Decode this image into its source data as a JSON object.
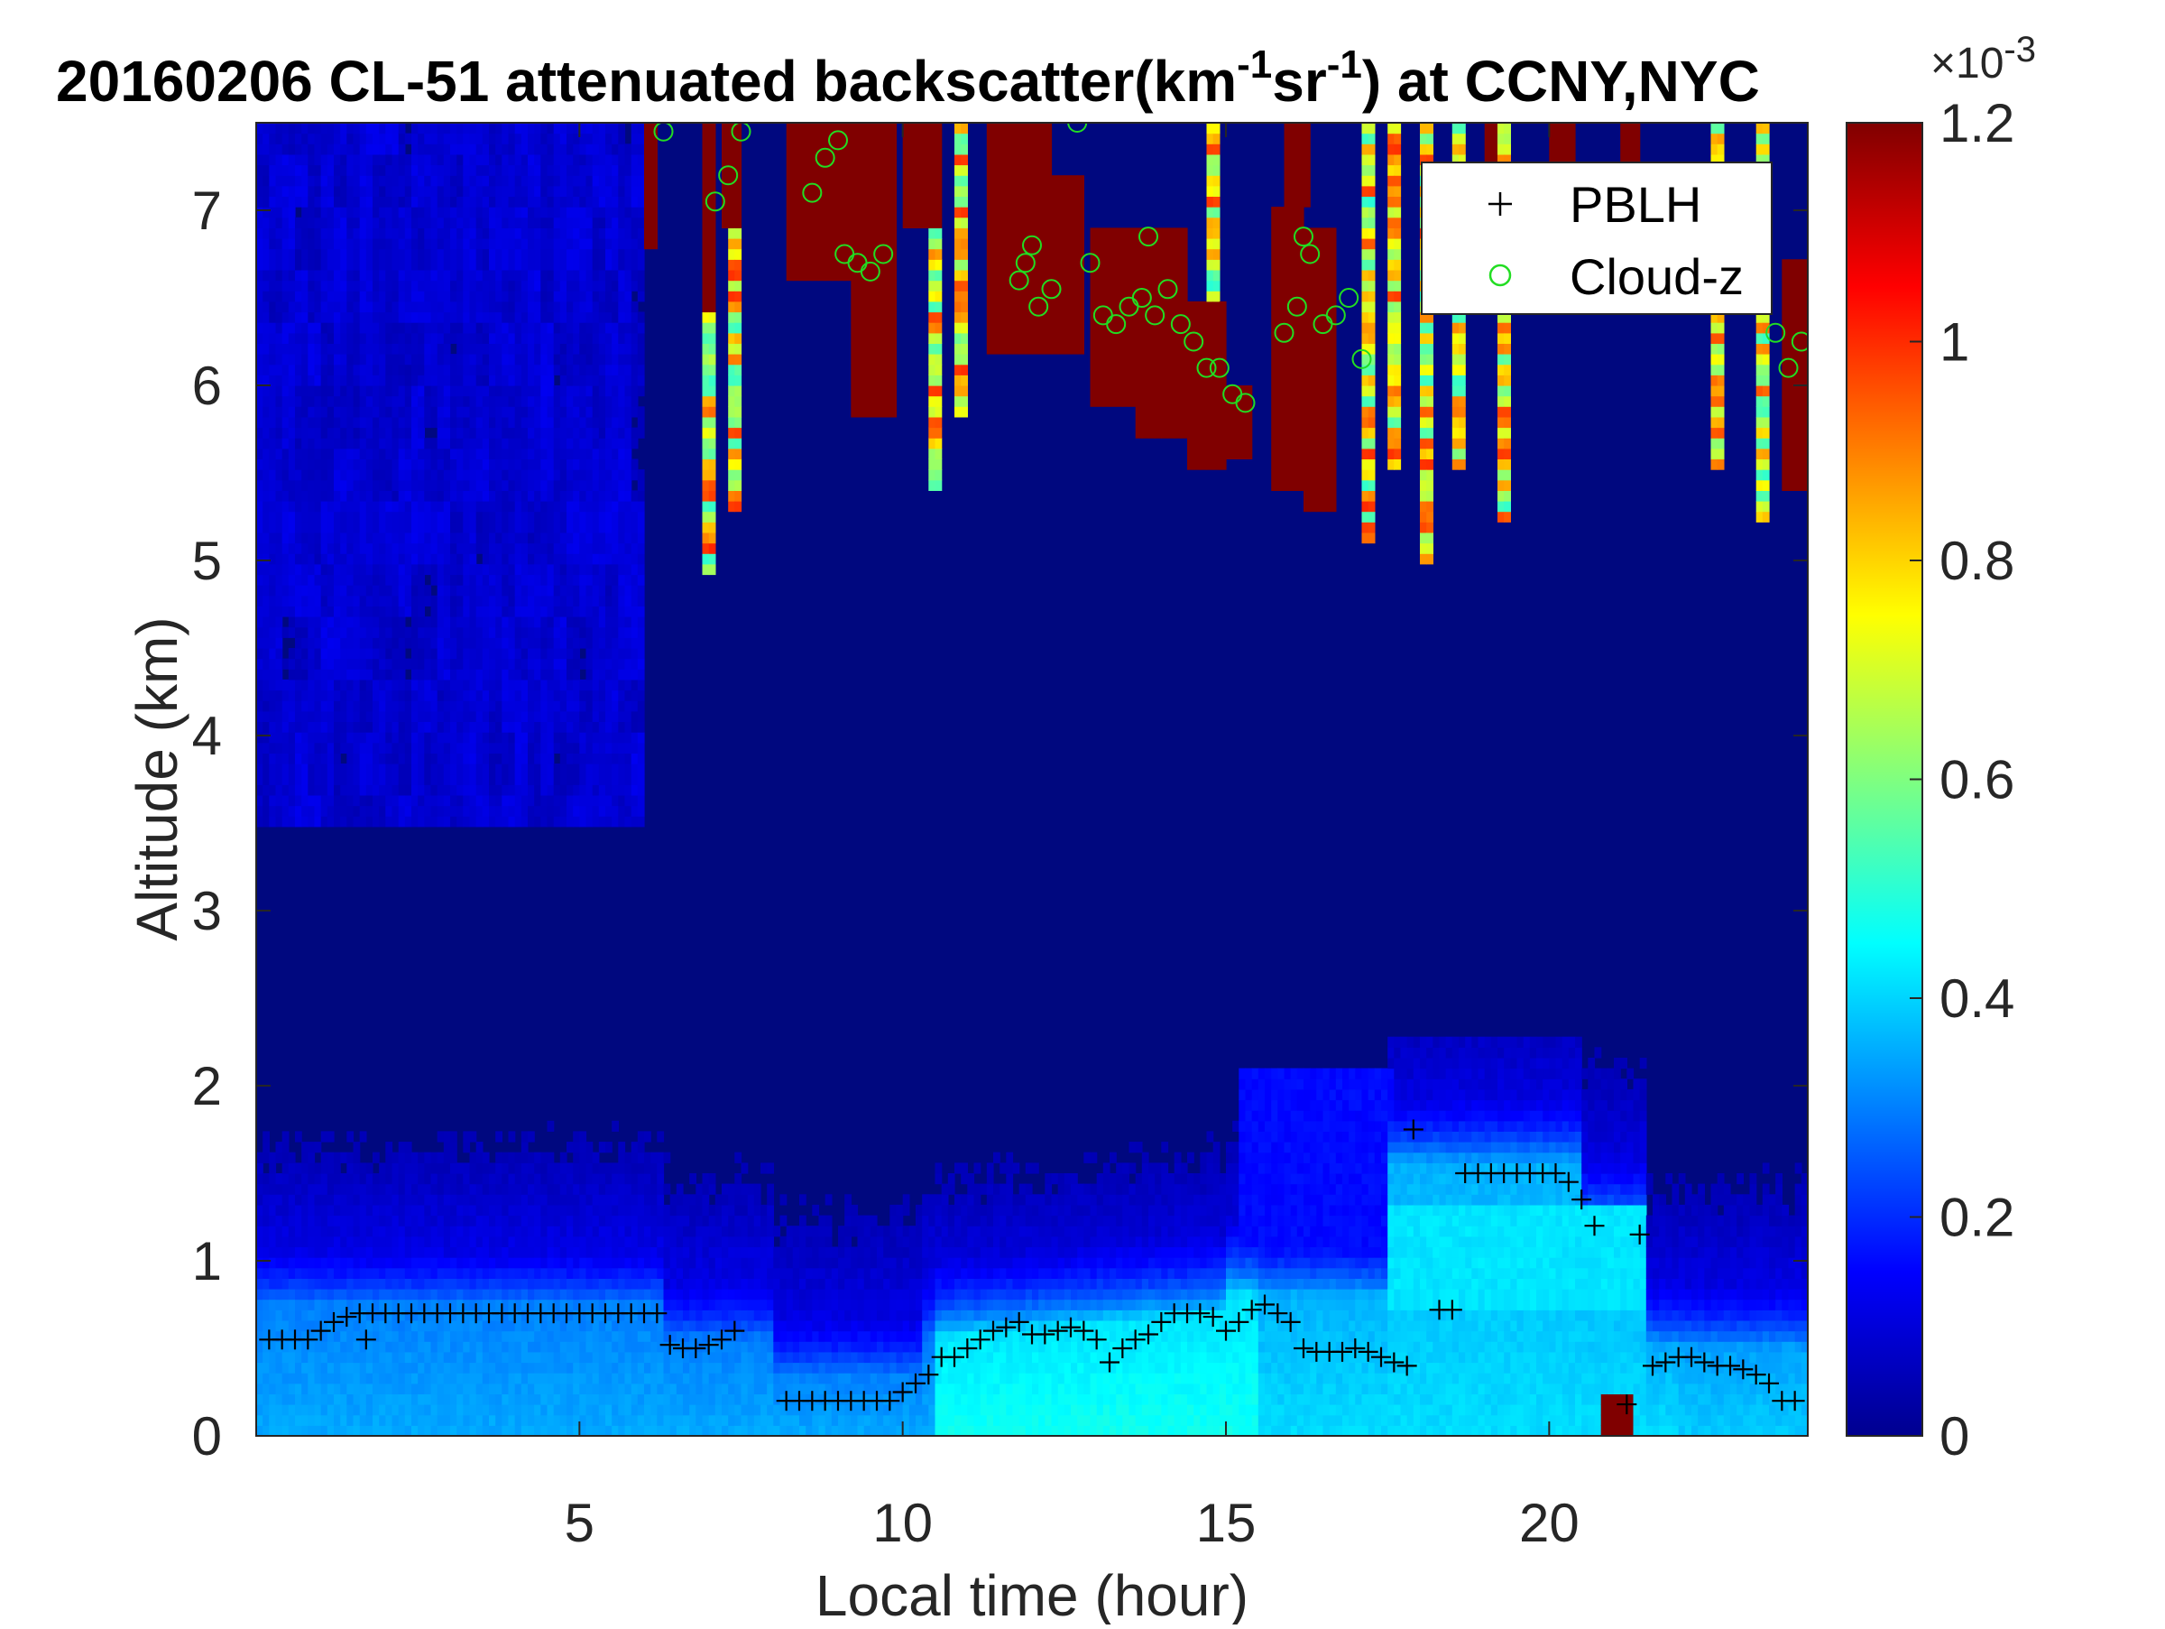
{
  "chart_data": {
    "type": "heatmap",
    "title": {
      "prefix": "20160206  CL-51 attenuated backscatter(km",
      "sup1": "-1",
      "mid": "sr",
      "sup2": "-1",
      "suffix": ") at CCNY,NYC"
    },
    "xlabel": "Local time (hour)",
    "ylabel": "Altitude (km)",
    "xlim": [
      0,
      24
    ],
    "ylim": [
      0,
      7.5
    ],
    "xticks": [
      5,
      10,
      15,
      20
    ],
    "yticks": [
      0,
      1,
      2,
      3,
      4,
      5,
      6,
      7
    ],
    "colorbar": {
      "min": 0,
      "max": 1.2,
      "ticks": [
        "0",
        "0.2",
        "0.4",
        "0.6",
        "0.8",
        "1",
        "1.2"
      ],
      "exponent_label": "×10",
      "exponent_sup": "-3",
      "colormap": "jet"
    },
    "legend": {
      "position": "top-right",
      "entries": [
        {
          "label": "PBLH",
          "marker": "+",
          "color": "#000000"
        },
        {
          "label": "Cloud-z",
          "marker": "o",
          "color": "#22dd22"
        }
      ]
    },
    "pblh_series": {
      "name": "PBLH",
      "x": [
        0.2,
        0.4,
        0.6,
        0.8,
        1.0,
        1.2,
        1.4,
        1.6,
        1.8,
        2.0,
        2.2,
        2.4,
        2.6,
        2.8,
        3.0,
        3.2,
        3.4,
        3.6,
        3.8,
        4.0,
        4.2,
        4.4,
        4.6,
        4.8,
        5.0,
        5.2,
        5.4,
        5.6,
        5.8,
        6.0,
        6.2,
        1.7,
        6.4,
        6.6,
        6.8,
        7.0,
        7.2,
        7.4,
        8.2,
        8.4,
        8.6,
        8.8,
        9.0,
        9.2,
        9.4,
        9.6,
        9.8,
        10.0,
        10.2,
        10.4,
        10.6,
        10.8,
        11.0,
        11.2,
        11.4,
        11.6,
        11.8,
        12.0,
        12.2,
        12.4,
        12.6,
        12.8,
        13.0,
        13.2,
        13.4,
        13.6,
        13.8,
        14.0,
        14.2,
        14.4,
        14.6,
        14.8,
        15.0,
        15.2,
        15.4,
        15.6,
        15.8,
        16.0,
        16.2,
        16.4,
        16.6,
        16.8,
        17.0,
        17.2,
        17.4,
        17.6,
        17.8,
        17.9,
        18.3,
        18.5,
        18.7,
        18.9,
        19.1,
        19.3,
        19.5,
        19.7,
        19.9,
        20.1,
        20.3,
        20.5,
        20.7,
        21.4,
        21.2,
        21.6,
        21.8,
        22.0,
        22.2,
        22.4,
        22.6,
        22.8,
        23.0,
        23.2,
        23.4,
        23.6,
        23.8
      ],
      "y": [
        0.55,
        0.55,
        0.55,
        0.55,
        0.6,
        0.65,
        0.68,
        0.7,
        0.7,
        0.7,
        0.7,
        0.7,
        0.7,
        0.7,
        0.7,
        0.7,
        0.7,
        0.7,
        0.7,
        0.7,
        0.7,
        0.7,
        0.7,
        0.7,
        0.7,
        0.7,
        0.7,
        0.7,
        0.7,
        0.7,
        0.7,
        0.55,
        0.52,
        0.5,
        0.5,
        0.52,
        0.55,
        0.6,
        0.2,
        0.2,
        0.2,
        0.2,
        0.2,
        0.2,
        0.2,
        0.2,
        0.2,
        0.25,
        0.3,
        0.35,
        0.45,
        0.45,
        0.5,
        0.55,
        0.6,
        0.62,
        0.65,
        0.58,
        0.58,
        0.6,
        0.62,
        0.6,
        0.55,
        0.42,
        0.5,
        0.55,
        0.58,
        0.65,
        0.7,
        0.7,
        0.7,
        0.68,
        0.6,
        0.65,
        0.72,
        0.75,
        0.7,
        0.65,
        0.5,
        0.48,
        0.48,
        0.48,
        0.5,
        0.48,
        0.45,
        0.42,
        0.4,
        1.75,
        0.72,
        0.72,
        1.5,
        1.5,
        1.5,
        1.5,
        1.5,
        1.5,
        1.5,
        1.5,
        1.45,
        1.35,
        1.2,
        1.15,
        0.18,
        0.4,
        0.42,
        0.45,
        0.45,
        0.42,
        0.4,
        0.4,
        0.38,
        0.35,
        0.3,
        0.2,
        0.2
      ]
    },
    "cloud_series": {
      "name": "Cloud-z",
      "x": [
        7.1,
        7.3,
        7.5,
        8.6,
        8.8,
        9.0,
        9.1,
        9.3,
        9.5,
        9.7,
        12.0,
        11.8,
        11.9,
        12.1,
        12.3,
        12.9,
        13.1,
        13.3,
        13.5,
        13.7,
        13.9,
        14.1,
        14.3,
        14.5,
        14.7,
        14.9,
        15.1,
        15.3,
        13.8,
        15.9,
        16.1,
        16.3,
        16.5,
        16.7,
        16.9,
        17.1,
        16.2,
        23.5,
        23.7,
        23.9,
        6.3,
        12.7
      ],
      "y": [
        7.05,
        7.2,
        7.45,
        7.1,
        7.3,
        7.4,
        6.75,
        6.7,
        6.65,
        6.75,
        6.8,
        6.6,
        6.7,
        6.45,
        6.55,
        6.7,
        6.4,
        6.35,
        6.45,
        6.5,
        6.4,
        6.55,
        6.35,
        6.25,
        6.1,
        6.1,
        5.95,
        5.9,
        6.85,
        6.3,
        6.45,
        6.75,
        6.35,
        6.4,
        6.5,
        6.15,
        6.85,
        6.3,
        6.1,
        6.25,
        7.45,
        7.5
      ]
    }
  }
}
